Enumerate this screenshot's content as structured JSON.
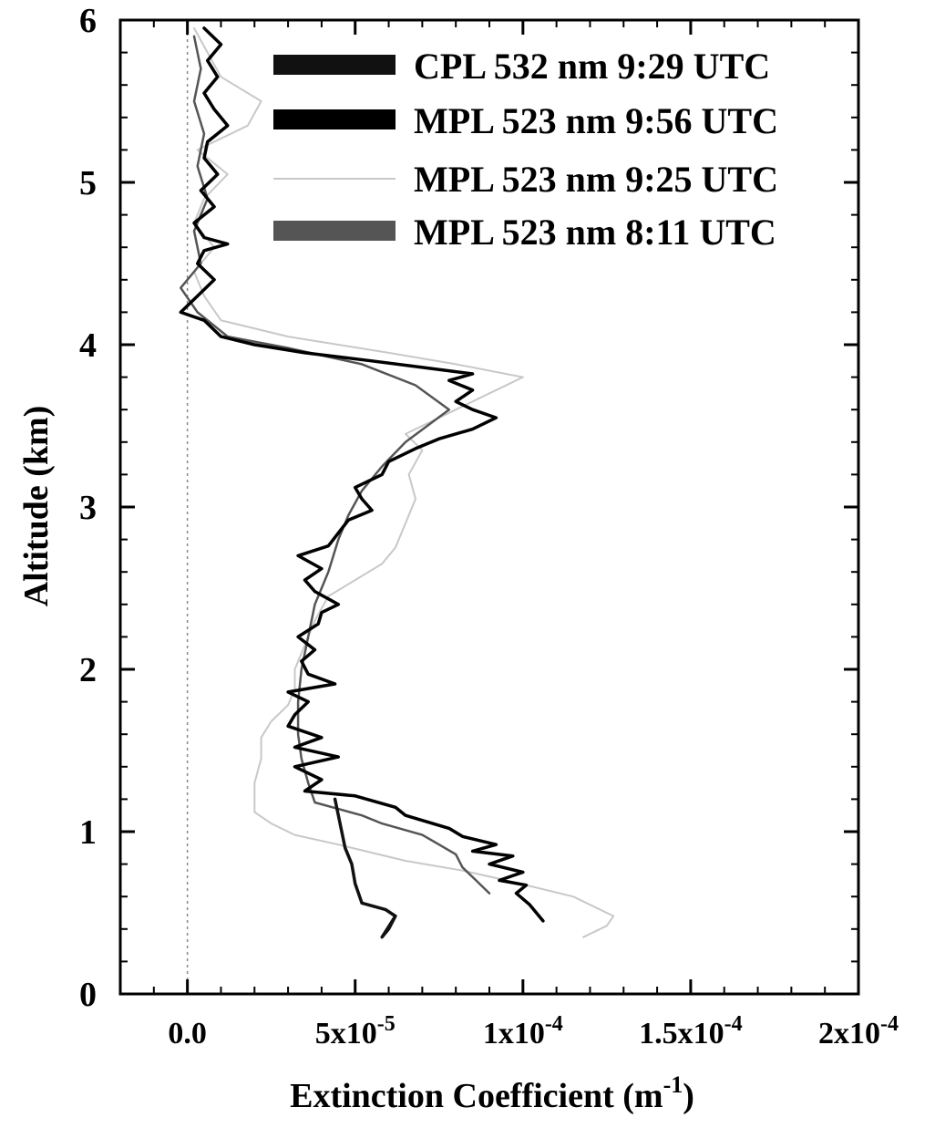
{
  "chart_data": {
    "type": "line",
    "title": "",
    "xlabel": {
      "text": "Extinction Coefficient (m",
      "sup": "-1",
      "tail": ")"
    },
    "ylabel": "Altitude (km)",
    "xlim": [
      -2e-05,
      0.0002
    ],
    "ylim": [
      0,
      6
    ],
    "grid": false,
    "legend_position": "top-right",
    "x_ticks": [
      {
        "value": 0,
        "base": "0.0",
        "sup": ""
      },
      {
        "value": 5e-05,
        "base": "5x10",
        "sup": "-5"
      },
      {
        "value": 0.0001,
        "base": "1x10",
        "sup": "-4"
      },
      {
        "value": 0.00015,
        "base": "1.5x10",
        "sup": "-4"
      },
      {
        "value": 0.0002,
        "base": "2x10",
        "sup": "-4"
      }
    ],
    "y_ticks": [
      {
        "value": 0,
        "label": "0"
      },
      {
        "value": 1,
        "label": "1"
      },
      {
        "value": 2,
        "label": "2"
      },
      {
        "value": 3,
        "label": "3"
      },
      {
        "value": 4,
        "label": "4"
      },
      {
        "value": 5,
        "label": "5"
      },
      {
        "value": 6,
        "label": "6"
      }
    ],
    "reference_line_x": 0,
    "series": [
      {
        "name": "CPL 532 nm 9:29 UTC",
        "color": "#111111",
        "width": 3.5,
        "points": [
          [
            6.2e-05,
            0.48
          ],
          [
            6e-05,
            0.4
          ],
          [
            5.8e-05,
            0.35
          ],
          [
            6.2e-05,
            0.48
          ],
          [
            5.9e-05,
            0.52
          ],
          [
            5.2e-05,
            0.56
          ],
          [
            5e-05,
            0.68
          ],
          [
            4.9e-05,
            0.8
          ],
          [
            4.7e-05,
            0.9
          ],
          [
            4.6e-05,
            1.0
          ],
          [
            4.5e-05,
            1.1
          ],
          [
            4.4e-05,
            1.2
          ]
        ]
      },
      {
        "name": "MPL 523 nm 9:56 UTC",
        "color": "#000000",
        "width": 3.5,
        "points": [
          [
            0.000106,
            0.45
          ],
          [
            0.000102,
            0.55
          ],
          [
            9.8e-05,
            0.62
          ],
          [
            0.000101,
            0.67
          ],
          [
            9.3e-05,
            0.7
          ],
          [
            0.0001,
            0.75
          ],
          [
            9e-05,
            0.8
          ],
          [
            9.7e-05,
            0.85
          ],
          [
            8.5e-05,
            0.88
          ],
          [
            9.2e-05,
            0.92
          ],
          [
            8.2e-05,
            0.97
          ],
          [
            7.8e-05,
            1.02
          ],
          [
            6.5e-05,
            1.1
          ],
          [
            6.2e-05,
            1.15
          ],
          [
            5e-05,
            1.22
          ],
          [
            3.5e-05,
            1.25
          ],
          [
            4e-05,
            1.32
          ],
          [
            3.2e-05,
            1.4
          ],
          [
            4.5e-05,
            1.46
          ],
          [
            3.2e-05,
            1.52
          ],
          [
            4e-05,
            1.58
          ],
          [
            3e-05,
            1.65
          ],
          [
            3.2e-05,
            1.72
          ],
          [
            3.6e-05,
            1.8
          ],
          [
            3e-05,
            1.86
          ],
          [
            4.4e-05,
            1.91
          ],
          [
            3.6e-05,
            1.97
          ],
          [
            3.4e-05,
            2.05
          ],
          [
            3.8e-05,
            2.12
          ],
          [
            3.3e-05,
            2.2
          ],
          [
            3.9e-05,
            2.28
          ],
          [
            4e-05,
            2.35
          ],
          [
            4.5e-05,
            2.4
          ],
          [
            3.8e-05,
            2.48
          ],
          [
            3.5e-05,
            2.55
          ],
          [
            4e-05,
            2.62
          ],
          [
            3.3e-05,
            2.7
          ],
          [
            4.2e-05,
            2.76
          ],
          [
            4.5e-05,
            2.84
          ],
          [
            4.8e-05,
            2.92
          ],
          [
            5.5e-05,
            2.98
          ],
          [
            5.2e-05,
            3.05
          ],
          [
            5e-05,
            3.12
          ],
          [
            5.8e-05,
            3.2
          ],
          [
            6e-05,
            3.28
          ],
          [
            6.8e-05,
            3.36
          ],
          [
            7.5e-05,
            3.42
          ],
          [
            8.5e-05,
            3.48
          ],
          [
            9.2e-05,
            3.55
          ],
          [
            8.5e-05,
            3.6
          ],
          [
            8e-05,
            3.65
          ],
          [
            8.5e-05,
            3.72
          ],
          [
            7.8e-05,
            3.78
          ],
          [
            8.5e-05,
            3.82
          ],
          [
            7e-05,
            3.86
          ],
          [
            5.5e-05,
            3.9
          ],
          [
            3.5e-05,
            3.95
          ],
          [
            2e-05,
            4.0
          ],
          [
            1e-05,
            4.05
          ],
          [
            5e-06,
            4.15
          ],
          [
            -2e-06,
            4.2
          ],
          [
            3e-06,
            4.3
          ],
          [
            8e-06,
            4.4
          ],
          [
            3e-06,
            4.5
          ],
          [
            5e-06,
            4.58
          ],
          [
            1.2e-05,
            4.62
          ],
          [
            5e-06,
            4.66
          ],
          [
            2e-06,
            4.75
          ],
          [
            8e-06,
            4.85
          ],
          [
            4e-06,
            4.95
          ],
          [
            9e-06,
            5.05
          ],
          [
            5e-06,
            5.15
          ],
          [
            6e-06,
            5.25
          ],
          [
            1.2e-05,
            5.35
          ],
          [
            8e-06,
            5.45
          ],
          [
            5e-06,
            5.55
          ],
          [
            9e-06,
            5.65
          ],
          [
            6e-06,
            5.75
          ],
          [
            1e-05,
            5.85
          ],
          [
            5e-06,
            5.95
          ]
        ]
      },
      {
        "name": "MPL 523 nm 9:25 UTC",
        "color": "#c8c8c8",
        "width": 2,
        "points": [
          [
            0.000118,
            0.35
          ],
          [
            0.000125,
            0.42
          ],
          [
            0.000127,
            0.48
          ],
          [
            0.000115,
            0.6
          ],
          [
            9.5e-05,
            0.7
          ],
          [
            8.2e-05,
            0.76
          ],
          [
            6.5e-05,
            0.82
          ],
          [
            5.5e-05,
            0.87
          ],
          [
            4.5e-05,
            0.92
          ],
          [
            3.2e-05,
            0.98
          ],
          [
            2.5e-05,
            1.05
          ],
          [
            2e-05,
            1.12
          ],
          [
            2e-05,
            1.18
          ],
          [
            2e-05,
            1.3
          ],
          [
            2.2e-05,
            1.45
          ],
          [
            2.2e-05,
            1.58
          ],
          [
            2.5e-05,
            1.68
          ],
          [
            3e-05,
            1.78
          ],
          [
            3.2e-05,
            1.88
          ],
          [
            3.2e-05,
            2.0
          ],
          [
            3.5e-05,
            2.15
          ],
          [
            3.8e-05,
            2.3
          ],
          [
            4.2e-05,
            2.45
          ],
          [
            5e-05,
            2.55
          ],
          [
            5.8e-05,
            2.65
          ],
          [
            6.2e-05,
            2.75
          ],
          [
            6.5e-05,
            2.9
          ],
          [
            6.8e-05,
            3.05
          ],
          [
            6.6e-05,
            3.2
          ],
          [
            7e-05,
            3.35
          ],
          [
            6.5e-05,
            3.45
          ],
          [
            8e-05,
            3.6
          ],
          [
            9.2e-05,
            3.72
          ],
          [
            0.0001,
            3.8
          ],
          [
            8e-05,
            3.88
          ],
          [
            6e-05,
            3.95
          ],
          [
            3e-05,
            4.05
          ],
          [
            1e-05,
            4.15
          ],
          [
            5e-06,
            4.3
          ],
          [
            2e-06,
            4.45
          ],
          [
            8e-06,
            4.6
          ],
          [
            2e-06,
            4.75
          ],
          [
            5e-06,
            4.9
          ],
          [
            1.2e-05,
            5.05
          ],
          [
            3e-06,
            5.2
          ],
          [
            1.8e-05,
            5.35
          ],
          [
            2.2e-05,
            5.5
          ],
          [
            1e-05,
            5.65
          ],
          [
            6e-06,
            5.8
          ],
          [
            2e-06,
            5.95
          ]
        ]
      },
      {
        "name": "MPL 523 nm 8:11 UTC",
        "color": "#555555",
        "width": 2.5,
        "points": [
          [
            9e-05,
            0.62
          ],
          [
            8.6e-05,
            0.7
          ],
          [
            8.2e-05,
            0.78
          ],
          [
            8e-05,
            0.86
          ],
          [
            7.5e-05,
            0.92
          ],
          [
            7e-05,
            0.98
          ],
          [
            5.8e-05,
            1.05
          ],
          [
            5.2e-05,
            1.1
          ],
          [
            4.5e-05,
            1.14
          ],
          [
            3.8e-05,
            1.18
          ],
          [
            3.6e-05,
            1.3
          ],
          [
            3.4e-05,
            1.45
          ],
          [
            3.3e-05,
            1.6
          ],
          [
            3.3e-05,
            1.8
          ],
          [
            3.4e-05,
            2.0
          ],
          [
            3.6e-05,
            2.2
          ],
          [
            3.8e-05,
            2.4
          ],
          [
            4.2e-05,
            2.6
          ],
          [
            4.5e-05,
            2.8
          ],
          [
            4.8e-05,
            2.95
          ],
          [
            5.2e-05,
            3.1
          ],
          [
            5.8e-05,
            3.25
          ],
          [
            6.5e-05,
            3.4
          ],
          [
            7.8e-05,
            3.6
          ],
          [
            6.8e-05,
            3.75
          ],
          [
            5.2e-05,
            3.88
          ],
          [
            3e-05,
            3.98
          ],
          [
            1.2e-05,
            4.05
          ],
          [
            3e-06,
            4.2
          ],
          [
            -2e-06,
            4.35
          ],
          [
            4e-06,
            4.5
          ],
          [
            2e-06,
            4.7
          ],
          [
            6e-06,
            4.9
          ],
          [
            3e-06,
            5.1
          ],
          [
            5e-06,
            5.3
          ],
          [
            2e-06,
            5.5
          ],
          [
            4e-06,
            5.7
          ],
          [
            2e-06,
            5.9
          ]
        ]
      }
    ]
  }
}
